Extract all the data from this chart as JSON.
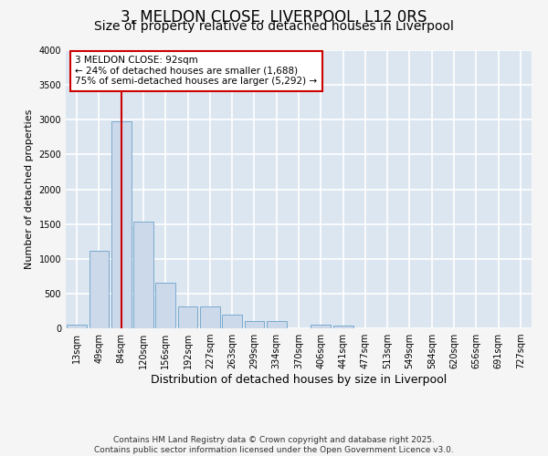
{
  "title": "3, MELDON CLOSE, LIVERPOOL, L12 0RS",
  "subtitle": "Size of property relative to detached houses in Liverpool",
  "xlabel": "Distribution of detached houses by size in Liverpool",
  "ylabel": "Number of detached properties",
  "categories": [
    "13sqm",
    "49sqm",
    "84sqm",
    "120sqm",
    "156sqm",
    "192sqm",
    "227sqm",
    "263sqm",
    "299sqm",
    "334sqm",
    "370sqm",
    "406sqm",
    "441sqm",
    "477sqm",
    "513sqm",
    "549sqm",
    "584sqm",
    "620sqm",
    "656sqm",
    "691sqm",
    "727sqm"
  ],
  "values": [
    50,
    1120,
    2980,
    1530,
    660,
    320,
    320,
    200,
    100,
    100,
    0,
    50,
    40,
    0,
    0,
    0,
    0,
    0,
    0,
    0,
    0
  ],
  "bar_color": "#ccd9ea",
  "bar_edge_color": "#7aaacf",
  "red_line_x": 2.0,
  "annotation_text": "3 MELDON CLOSE: 92sqm\n← 24% of detached houses are smaller (1,688)\n75% of semi-detached houses are larger (5,292) →",
  "annotation_box_facecolor": "#ffffff",
  "annotation_box_edgecolor": "#cc0000",
  "ylim": [
    0,
    4000
  ],
  "yticks": [
    0,
    500,
    1000,
    1500,
    2000,
    2500,
    3000,
    3500,
    4000
  ],
  "fig_facecolor": "#f5f5f5",
  "ax_facecolor": "#dce6f0",
  "grid_color": "#ffffff",
  "footer": "Contains HM Land Registry data © Crown copyright and database right 2025.\nContains public sector information licensed under the Open Government Licence v3.0.",
  "title_fontsize": 12,
  "subtitle_fontsize": 10,
  "xlabel_fontsize": 9,
  "ylabel_fontsize": 8,
  "tick_fontsize": 7,
  "annotation_fontsize": 7.5,
  "footer_fontsize": 6.5
}
